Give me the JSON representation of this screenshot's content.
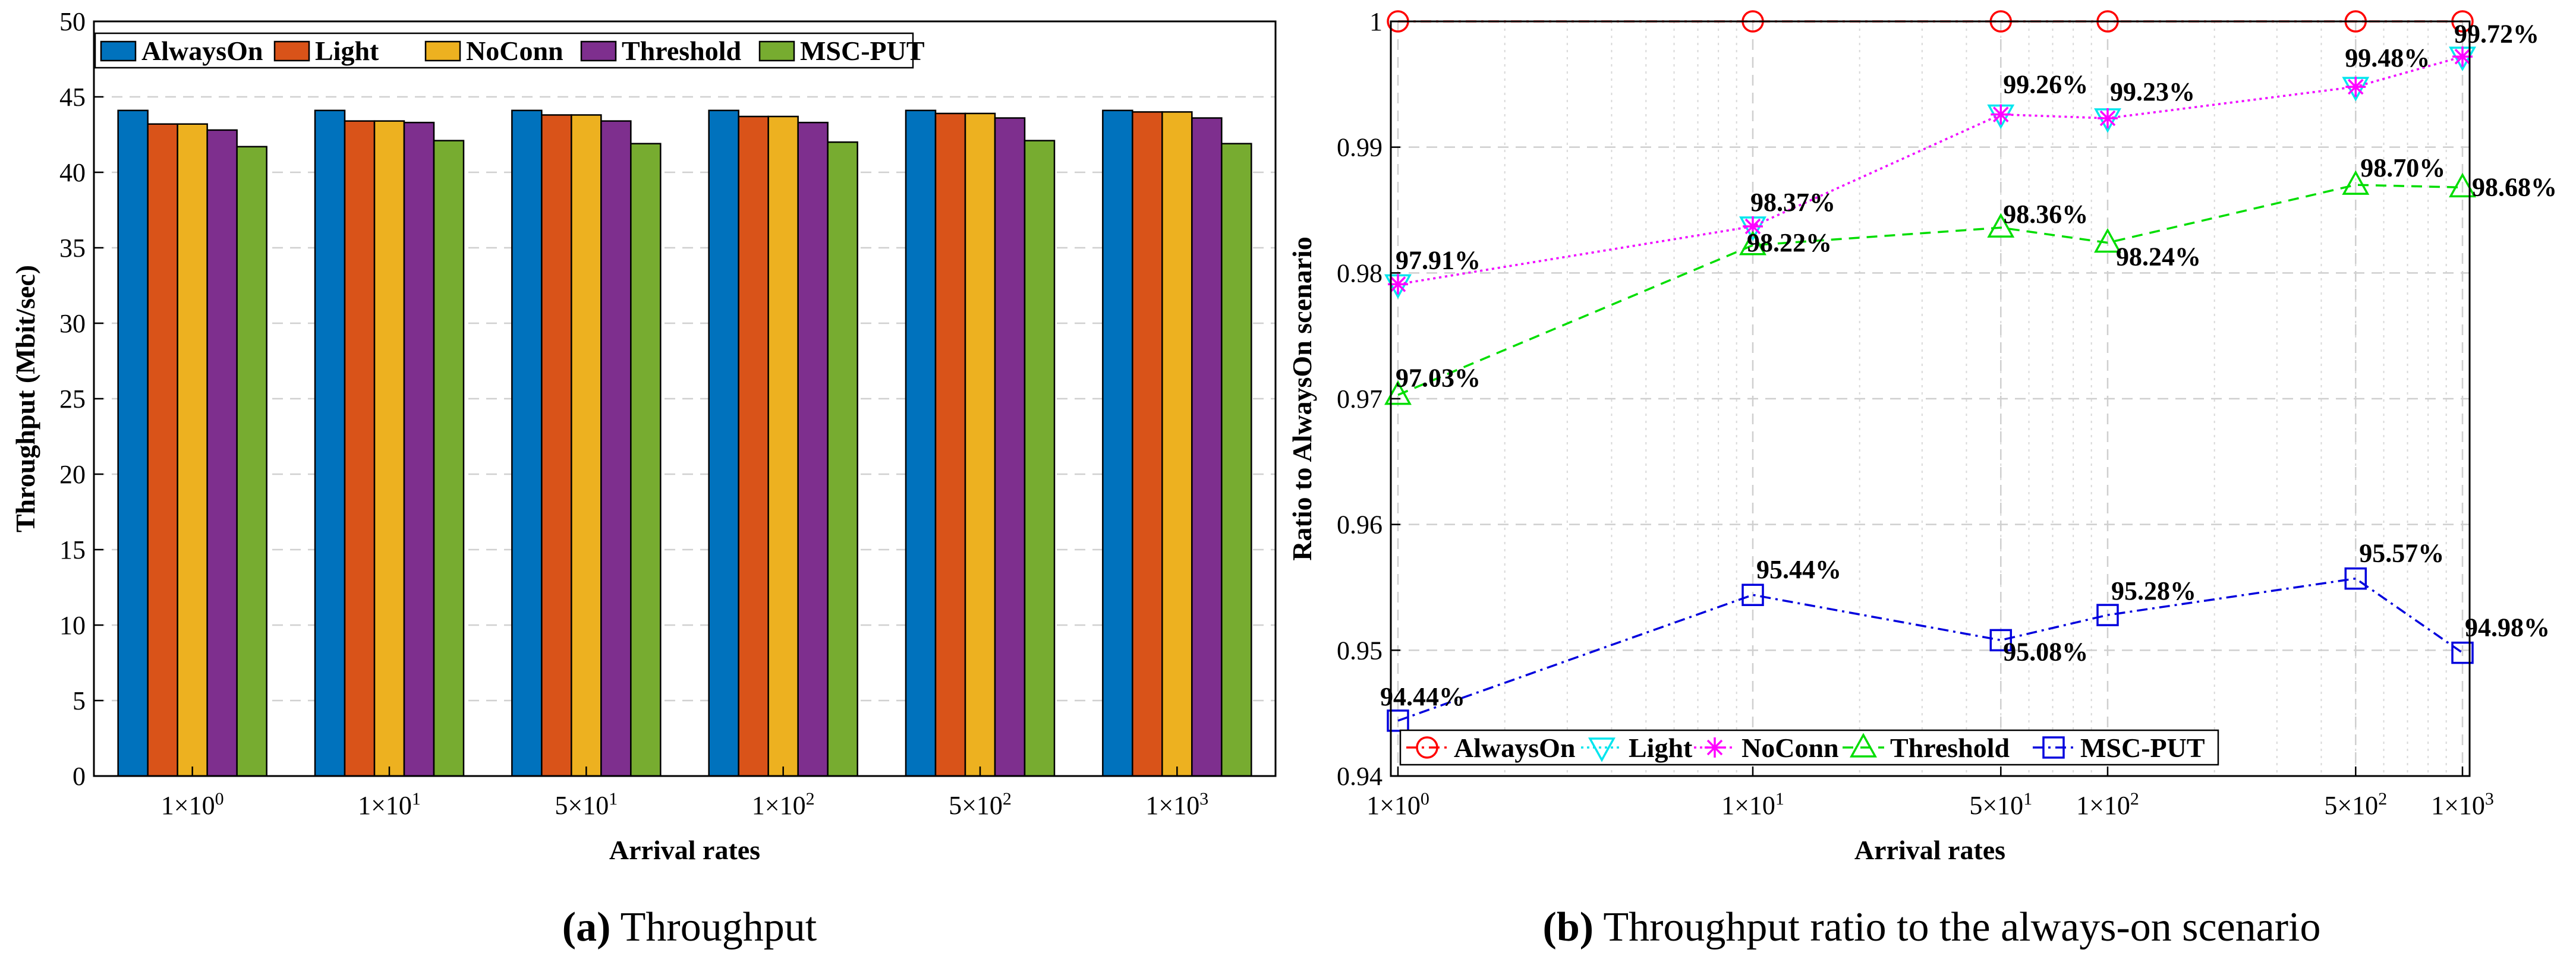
{
  "chart_data": [
    {
      "type": "bar",
      "panel": "a",
      "ylabel": "Throughput (Mbit/sec)",
      "xlabel": "Arrival rates",
      "ylim": [
        0,
        50
      ],
      "yticks": [
        "0",
        "5",
        "10",
        "15",
        "20",
        "25",
        "30",
        "35",
        "40",
        "45",
        "50"
      ],
      "grid": "horizontal dashed",
      "legend_position": "top",
      "categories": [
        {
          "mant": "1",
          "exp": "0"
        },
        {
          "mant": "1",
          "exp": "1"
        },
        {
          "mant": "5",
          "exp": "1"
        },
        {
          "mant": "1",
          "exp": "2"
        },
        {
          "mant": "5",
          "exp": "2"
        },
        {
          "mant": "1",
          "exp": "3"
        }
      ],
      "series": [
        {
          "name": "AlwaysOn",
          "color": "#0072bd",
          "values": [
            44.1,
            44.1,
            44.1,
            44.1,
            44.1,
            44.1
          ]
        },
        {
          "name": "Light",
          "color": "#d95319",
          "values": [
            43.2,
            43.4,
            43.8,
            43.7,
            43.9,
            44.0
          ]
        },
        {
          "name": "NoConn",
          "color": "#edb120",
          "values": [
            43.2,
            43.4,
            43.8,
            43.7,
            43.9,
            44.0
          ]
        },
        {
          "name": "Threshold",
          "color": "#7e2f8e",
          "values": [
            42.8,
            43.3,
            43.4,
            43.3,
            43.6,
            43.6
          ]
        },
        {
          "name": "MSC-PUT",
          "color": "#77ac30",
          "values": [
            41.7,
            42.1,
            41.9,
            42.0,
            42.1,
            41.9
          ]
        }
      ],
      "caption": {
        "letter": "(a)",
        "text": " Throughput"
      }
    },
    {
      "type": "line",
      "panel": "b",
      "xscale": "log",
      "ylabel": "Ratio to AlwaysOn scenario",
      "xlabel": "Arrival rates",
      "ylim": [
        0.94,
        1.0
      ],
      "xlim": [
        1,
        1000
      ],
      "yticks": [
        "0.94",
        "0.95",
        "0.96",
        "0.97",
        "0.98",
        "0.99",
        "1"
      ],
      "xticks": [
        {
          "v": 1,
          "mant": "1",
          "exp": "0"
        },
        {
          "v": 10,
          "mant": "1",
          "exp": "1"
        },
        {
          "v": 50,
          "mant": "5",
          "exp": "1"
        },
        {
          "v": 100,
          "mant": "1",
          "exp": "2"
        },
        {
          "v": 500,
          "mant": "5",
          "exp": "2"
        },
        {
          "v": 1000,
          "mant": "1",
          "exp": "3"
        }
      ],
      "grid": "dashed, log minor",
      "legend_position": "bottom",
      "x": [
        1,
        10,
        50,
        100,
        500,
        1000
      ],
      "series": [
        {
          "name": "AlwaysOn",
          "color": "#ff0000",
          "marker": "circle",
          "line": "dashdot",
          "values": [
            1.0,
            1.0,
            1.0,
            1.0,
            1.0,
            1.0
          ],
          "labels": []
        },
        {
          "name": "Light",
          "color": "#00e5ee",
          "marker": "triangle-down",
          "line": "dotted",
          "values": [
            0.9791,
            0.9837,
            0.9926,
            0.9923,
            0.9948,
            0.9972
          ],
          "labels": []
        },
        {
          "name": "NoConn",
          "color": "#ff00ff",
          "marker": "asterisk",
          "line": "dotted",
          "values": [
            0.9791,
            0.9837,
            0.9926,
            0.9923,
            0.9948,
            0.9972
          ],
          "labels": [
            "97.91%",
            "98.37%",
            "99.26%",
            "99.23%",
            "99.48%",
            "99.72%"
          ]
        },
        {
          "name": "Threshold",
          "color": "#00dd00",
          "marker": "triangle-up",
          "line": "dashed",
          "values": [
            0.9703,
            0.9822,
            0.9836,
            0.9824,
            0.987,
            0.9868
          ],
          "labels": [
            "97.03%",
            "98.22%",
            "98.36%",
            "98.24%",
            "98.70%",
            "98.68%"
          ]
        },
        {
          "name": "MSC-PUT",
          "color": "#0000dd",
          "marker": "square",
          "line": "dashdot",
          "values": [
            0.9444,
            0.9544,
            0.9508,
            0.9528,
            0.9557,
            0.9498
          ],
          "labels": [
            "94.44%",
            "95.44%",
            "95.08%",
            "95.28%",
            "95.57%",
            "94.98%"
          ]
        }
      ],
      "caption": {
        "letter": "(b)",
        "text": " Throughput ratio to the always-on scenario"
      }
    }
  ]
}
